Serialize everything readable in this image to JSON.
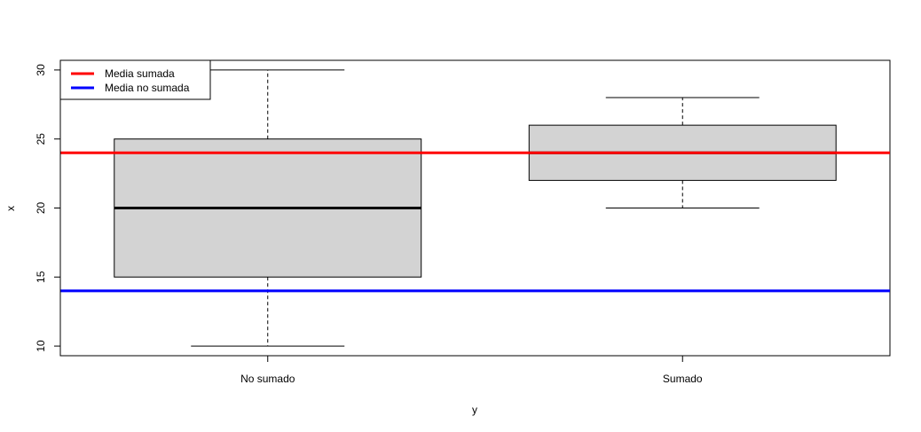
{
  "chart_data": {
    "type": "boxplot",
    "title": "",
    "xlabel": "y",
    "ylabel": "x",
    "ylim": [
      9.3,
      30.7
    ],
    "yticks": [
      10,
      15,
      20,
      25,
      30
    ],
    "categories": [
      "No sumado",
      "Sumado"
    ],
    "boxes": [
      {
        "category": "No sumado",
        "min": 10,
        "q1": 15,
        "median": 20,
        "q3": 25,
        "max": 30
      },
      {
        "category": "Sumado",
        "min": 20,
        "q1": 22,
        "median": 24,
        "q3": 26,
        "max": 28
      }
    ],
    "hlines": [
      {
        "name": "Media sumada",
        "value": 24,
        "color": "#ff0000"
      },
      {
        "name": "Media no sumada",
        "value": 14,
        "color": "#0000ff"
      }
    ],
    "legend_position": "top-left",
    "box_fill": "#d3d3d3",
    "grid": false
  }
}
